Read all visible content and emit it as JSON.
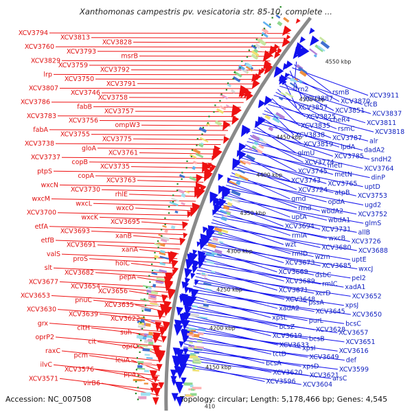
{
  "title": "Xanthomonas campestris pv. vesicatoria str. 85-10, complete ...",
  "footer": {
    "accession": "Accession: NC_007508",
    "topology": "Topology: circular; Length: 5,178,466 bp; Genes: 4,545"
  },
  "kbp_ticks": [
    "4550 kbp",
    "4500 kbp",
    "4450 kbp",
    "4400 kbp",
    "4350 kbp",
    "4300 kbp",
    "4250 kbp",
    "4200 kbp",
    "4150 kbp",
    "410"
  ],
  "colors": {
    "forward": "#ee1111",
    "reverse": "#1111ee",
    "backbone": "#8a8a8a",
    "tick": "#228822"
  },
  "left_genes": [
    "XCV3794",
    "XCV3813",
    "XCV3828",
    "XCV3760",
    "XCV3793",
    "msrB",
    "XCV3829",
    "XCV3759",
    "XCV3792",
    "lrp",
    "XCV3750",
    "XCV3791",
    "XCV3807",
    "XCV3746",
    "XCV3758",
    "XCV3786",
    "fabB",
    "XCV3757",
    "XCV3783",
    "XCV3756",
    "ompW3",
    "fabA",
    "XCV3755",
    "XCV3775",
    "XCV3738",
    "gloA",
    "XCV3761",
    "XCV3737",
    "copB",
    "XCV3735",
    "ptpS",
    "copA",
    "XCV3763",
    "wxcN",
    "XCV3730",
    "rhlE",
    "wxcM",
    "wxcL",
    "wxcO",
    "XCV3700",
    "wxcK",
    "XCV3695",
    "etfA",
    "XCV3693",
    "xanB",
    "etfB",
    "XCV3691",
    "xanA",
    "valS",
    "proS",
    "holC",
    "slt",
    "XCV3682",
    "pepA",
    "XCV3677",
    "XCV3654",
    "XCV3656",
    "XCV3653",
    "pnuC",
    "XCV3635",
    "XCV3630",
    "XCV3639",
    "XCV3622",
    "grx",
    "citH",
    "suh",
    "oprP2",
    "cit",
    "oprO",
    "raxC",
    "pcm",
    "leuA",
    "ilvC",
    "XCV3576",
    "ppa",
    "XCV3571",
    "virB6"
  ],
  "right_genes": [
    "trn2",
    "rsmB",
    "XCV3911",
    "XCV3887",
    "XCV3870",
    "clcB",
    "XCV3857",
    "XCV3851",
    "XCV3837",
    "XCV3825",
    "cheR4",
    "XCV3811",
    "XCV3835",
    "rsmC",
    "XCV3818",
    "XCV3838",
    "XCV3787",
    "alr",
    "XCV3819",
    "lpdA",
    "dadA2",
    "glmU",
    "XCV3785",
    "sndH2",
    "XCV3774",
    "metI",
    "XCV3764",
    "XCV3745",
    "metN",
    "dinP",
    "XCV3743",
    "XCV3765",
    "uptD",
    "XCV3724",
    "atpB",
    "XCV3753",
    "gmd",
    "opdA",
    "ugd2",
    "rmd",
    "wbdA2",
    "XCV3752",
    "uptA",
    "wbdA1",
    "glmS",
    "XCV3694",
    "XCV3731",
    "allB",
    "rmlA",
    "wxcB",
    "XCV3726",
    "wzt",
    "XCV3680",
    "XCV3688",
    "rmlD",
    "wzm",
    "uptE",
    "XCV3673",
    "XCV3685",
    "wxcJ",
    "XCV3669",
    "dsbC",
    "pel2",
    "XCV3689",
    "rmlC",
    "xadA1",
    "XCV3671",
    "xerD",
    "XCV3652",
    "XCV3648",
    "pssA",
    "xpsJ",
    "xadA2",
    "XCV3645",
    "XCV3650",
    "xpsL",
    "purL",
    "bcsC",
    "bcsZ",
    "XCV3628",
    "XCV3657",
    "XCV3619",
    "bcsB",
    "XCV3651",
    "XCV3633",
    "xpsI",
    "XCV3616",
    "tctD",
    "XCV3649",
    "def",
    "bcsA",
    "xpsD",
    "XCV3599",
    "XCV3620",
    "XCV3621",
    "arsC",
    "XCV3596",
    "XCV3604"
  ]
}
